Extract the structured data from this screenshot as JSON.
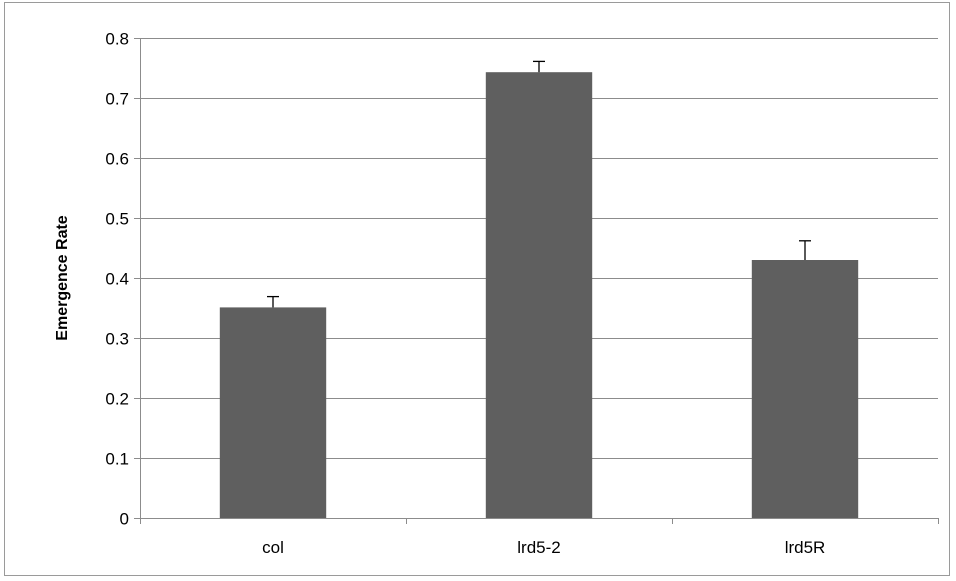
{
  "chart_data": {
    "type": "bar",
    "title": "",
    "xlabel": "",
    "ylabel": "Emergence Rate",
    "categories": [
      "col",
      "lrd5-2",
      "lrd5R"
    ],
    "values": [
      0.351,
      0.743,
      0.43
    ],
    "error_bars": [
      0.018,
      0.018,
      0.032
    ],
    "ylim": [
      0,
      0.8
    ],
    "yticks": [
      "0",
      "0.1",
      "0.2",
      "0.3",
      "0.4",
      "0.5",
      "0.6",
      "0.7",
      "0.8"
    ],
    "grid": true,
    "legend": "none",
    "bar_color": "#5f5f5f",
    "gridline_color": "#8c8c8c",
    "axis_color": "#8c8c8c"
  }
}
